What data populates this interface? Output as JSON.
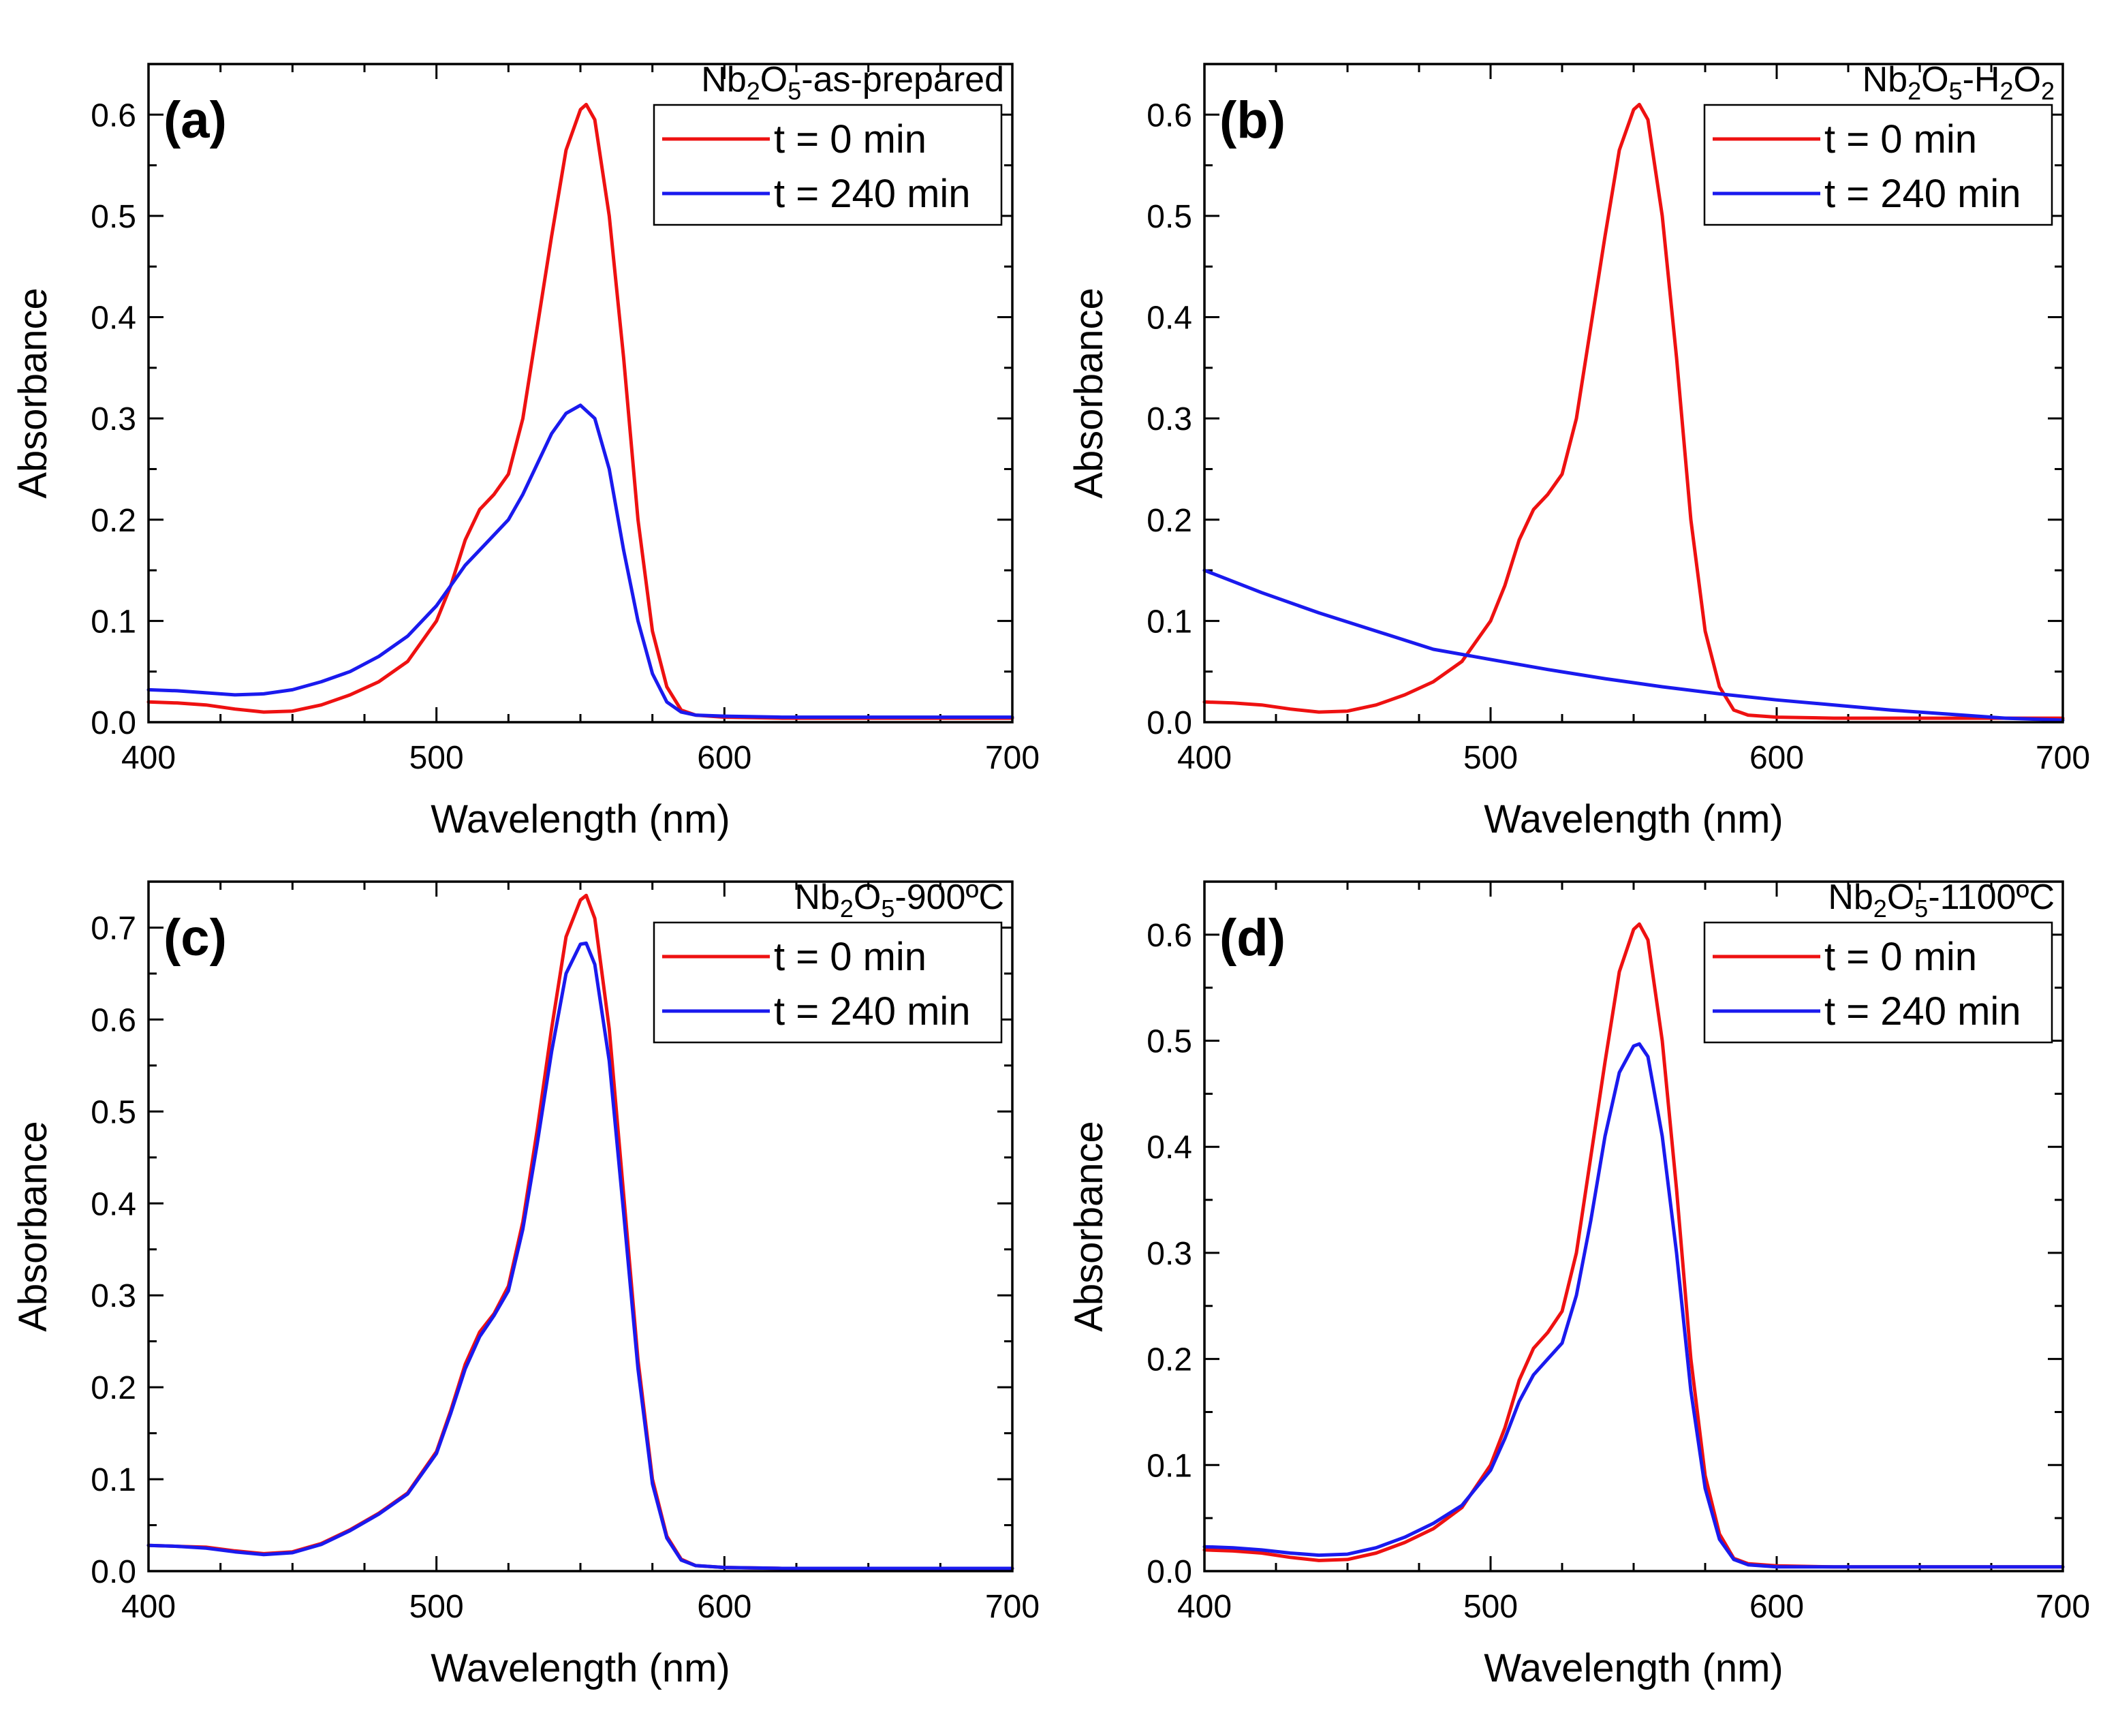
{
  "colors": {
    "t0": "#ee1111",
    "t240": "#1a1aee",
    "axis": "#000000"
  },
  "chart_data": [
    {
      "type": "line",
      "panel_label": "(a)",
      "sample_label": {
        "prefix": "Nb",
        "sub1": "2",
        "mid": "O",
        "sub2": "5",
        "suffix": "-as-prepared"
      },
      "xlabel": "Wavelength (nm)",
      "ylabel": "Absorbance",
      "xlim": [
        400,
        700
      ],
      "ylim": [
        0,
        0.65
      ],
      "xticks": [
        400,
        500,
        600,
        700
      ],
      "xtick_labels": [
        "400",
        "500",
        "600",
        "700"
      ],
      "yticks": [
        0,
        0.1,
        0.2,
        0.3,
        0.4,
        0.5,
        0.6
      ],
      "ytick_labels": [
        "0.0",
        "0.1",
        "0.2",
        "0.3",
        "0.4",
        "0.5",
        "0.6"
      ],
      "legend": {
        "position": "top-right",
        "entries": [
          "t = 0 min",
          "t = 240 min"
        ]
      },
      "series": [
        {
          "name": "t = 0 min",
          "color": "#ee1111",
          "x": [
            400,
            410,
            420,
            430,
            440,
            450,
            460,
            470,
            480,
            490,
            500,
            505,
            510,
            515,
            520,
            525,
            530,
            535,
            540,
            545,
            550,
            552,
            555,
            560,
            565,
            570,
            575,
            580,
            585,
            590,
            600,
            620,
            650,
            700
          ],
          "y": [
            0.02,
            0.019,
            0.017,
            0.013,
            0.01,
            0.011,
            0.017,
            0.027,
            0.04,
            0.06,
            0.1,
            0.135,
            0.18,
            0.21,
            0.225,
            0.245,
            0.3,
            0.39,
            0.48,
            0.565,
            0.605,
            0.61,
            0.595,
            0.5,
            0.36,
            0.2,
            0.09,
            0.035,
            0.012,
            0.007,
            0.005,
            0.004,
            0.004,
            0.004
          ]
        },
        {
          "name": "t = 240 min",
          "color": "#1a1aee",
          "x": [
            400,
            410,
            420,
            430,
            440,
            450,
            460,
            470,
            480,
            490,
            500,
            505,
            510,
            515,
            520,
            525,
            530,
            535,
            540,
            545,
            550,
            555,
            560,
            565,
            570,
            575,
            580,
            585,
            590,
            600,
            620,
            650,
            700
          ],
          "y": [
            0.032,
            0.031,
            0.029,
            0.027,
            0.028,
            0.032,
            0.04,
            0.05,
            0.065,
            0.085,
            0.115,
            0.135,
            0.155,
            0.17,
            0.185,
            0.2,
            0.225,
            0.255,
            0.285,
            0.305,
            0.313,
            0.3,
            0.25,
            0.17,
            0.1,
            0.048,
            0.02,
            0.01,
            0.007,
            0.006,
            0.005,
            0.005,
            0.005
          ]
        }
      ]
    },
    {
      "type": "line",
      "panel_label": "(b)",
      "sample_label": {
        "prefix": "Nb",
        "sub1": "2",
        "mid": "O",
        "sub2": "5",
        "suffix": "-H",
        "sub3": "2",
        "mid2": "O",
        "sub4": "2"
      },
      "xlabel": "Wavelength (nm)",
      "ylabel": "Absorbance",
      "xlim": [
        400,
        700
      ],
      "ylim": [
        0,
        0.65
      ],
      "xticks": [
        400,
        500,
        600,
        700
      ],
      "xtick_labels": [
        "400",
        "500",
        "600",
        "700"
      ],
      "yticks": [
        0,
        0.1,
        0.2,
        0.3,
        0.4,
        0.5,
        0.6
      ],
      "ytick_labels": [
        "0.0",
        "0.1",
        "0.2",
        "0.3",
        "0.4",
        "0.5",
        "0.6"
      ],
      "legend": {
        "position": "top-right",
        "entries": [
          "t = 0 min",
          "t = 240 min"
        ]
      },
      "series": [
        {
          "name": "t = 0 min",
          "color": "#ee1111",
          "x": [
            400,
            410,
            420,
            430,
            440,
            450,
            460,
            470,
            480,
            490,
            500,
            505,
            510,
            515,
            520,
            525,
            530,
            535,
            540,
            545,
            550,
            552,
            555,
            560,
            565,
            570,
            575,
            580,
            585,
            590,
            600,
            620,
            650,
            700
          ],
          "y": [
            0.02,
            0.019,
            0.017,
            0.013,
            0.01,
            0.011,
            0.017,
            0.027,
            0.04,
            0.06,
            0.1,
            0.135,
            0.18,
            0.21,
            0.225,
            0.245,
            0.3,
            0.39,
            0.48,
            0.565,
            0.605,
            0.61,
            0.595,
            0.5,
            0.36,
            0.2,
            0.09,
            0.035,
            0.012,
            0.007,
            0.005,
            0.004,
            0.004,
            0.004
          ]
        },
        {
          "name": "t = 240 min",
          "color": "#1a1aee",
          "x": [
            400,
            420,
            440,
            460,
            480,
            500,
            520,
            540,
            560,
            580,
            600,
            620,
            640,
            660,
            680,
            700
          ],
          "y": [
            0.15,
            0.128,
            0.108,
            0.09,
            0.072,
            0.062,
            0.052,
            0.043,
            0.035,
            0.028,
            0.022,
            0.017,
            0.012,
            0.008,
            0.004,
            0.002
          ]
        }
      ]
    },
    {
      "type": "line",
      "panel_label": "(c)",
      "sample_label": {
        "prefix": "Nb",
        "sub1": "2",
        "mid": "O",
        "sub2": "5",
        "suffix": "-900ºC"
      },
      "xlabel": "Wavelength (nm)",
      "ylabel": "Absorbance",
      "xlim": [
        400,
        700
      ],
      "ylim": [
        0,
        0.75
      ],
      "xticks": [
        400,
        500,
        600,
        700
      ],
      "xtick_labels": [
        "400",
        "500",
        "600",
        "700"
      ],
      "yticks": [
        0,
        0.1,
        0.2,
        0.3,
        0.4,
        0.5,
        0.6,
        0.7
      ],
      "ytick_labels": [
        "0.0",
        "0.1",
        "0.2",
        "0.3",
        "0.4",
        "0.5",
        "0.6",
        "0.7"
      ],
      "legend": {
        "position": "top-right",
        "entries": [
          "t = 0 min",
          "t = 240 min"
        ]
      },
      "series": [
        {
          "name": "t = 0 min",
          "color": "#ee1111",
          "x": [
            400,
            410,
            420,
            430,
            440,
            450,
            460,
            470,
            480,
            490,
            500,
            505,
            510,
            515,
            520,
            525,
            530,
            535,
            540,
            545,
            550,
            552,
            555,
            560,
            565,
            570,
            575,
            580,
            585,
            590,
            600,
            620,
            650,
            700
          ],
          "y": [
            0.028,
            0.027,
            0.026,
            0.022,
            0.019,
            0.021,
            0.03,
            0.045,
            0.063,
            0.085,
            0.13,
            0.175,
            0.225,
            0.26,
            0.28,
            0.31,
            0.38,
            0.48,
            0.59,
            0.69,
            0.73,
            0.735,
            0.71,
            0.59,
            0.41,
            0.23,
            0.1,
            0.038,
            0.013,
            0.006,
            0.004,
            0.003,
            0.003,
            0.003
          ]
        },
        {
          "name": "t = 240 min",
          "color": "#1a1aee",
          "x": [
            400,
            410,
            420,
            430,
            440,
            450,
            460,
            470,
            480,
            490,
            500,
            505,
            510,
            515,
            520,
            525,
            530,
            535,
            540,
            545,
            550,
            552,
            555,
            560,
            565,
            570,
            575,
            580,
            585,
            590,
            600,
            620,
            650,
            700
          ],
          "y": [
            0.028,
            0.027,
            0.025,
            0.021,
            0.018,
            0.02,
            0.029,
            0.044,
            0.062,
            0.084,
            0.128,
            0.172,
            0.22,
            0.255,
            0.278,
            0.305,
            0.372,
            0.465,
            0.565,
            0.65,
            0.682,
            0.683,
            0.66,
            0.555,
            0.39,
            0.22,
            0.095,
            0.036,
            0.012,
            0.006,
            0.004,
            0.003,
            0.003,
            0.003
          ]
        }
      ]
    },
    {
      "type": "line",
      "panel_label": "(d)",
      "sample_label": {
        "prefix": "Nb",
        "sub1": "2",
        "mid": "O",
        "sub2": "5",
        "suffix": "-1100ºC"
      },
      "xlabel": "Wavelength (nm)",
      "ylabel": "Absorbance",
      "xlim": [
        400,
        700
      ],
      "ylim": [
        0,
        0.65
      ],
      "xticks": [
        400,
        500,
        600,
        700
      ],
      "xtick_labels": [
        "400",
        "500",
        "600",
        "700"
      ],
      "yticks": [
        0,
        0.1,
        0.2,
        0.3,
        0.4,
        0.5,
        0.6
      ],
      "ytick_labels": [
        "0.0",
        "0.1",
        "0.2",
        "0.3",
        "0.4",
        "0.5",
        "0.6"
      ],
      "legend": {
        "position": "top-right",
        "entries": [
          "t = 0 min",
          "t = 240 min"
        ]
      },
      "series": [
        {
          "name": "t = 0 min",
          "color": "#ee1111",
          "x": [
            400,
            410,
            420,
            430,
            440,
            450,
            460,
            470,
            480,
            490,
            500,
            505,
            510,
            515,
            520,
            525,
            530,
            535,
            540,
            545,
            550,
            552,
            555,
            560,
            565,
            570,
            575,
            580,
            585,
            590,
            600,
            620,
            650,
            700
          ],
          "y": [
            0.02,
            0.019,
            0.017,
            0.013,
            0.01,
            0.011,
            0.017,
            0.027,
            0.04,
            0.06,
            0.1,
            0.135,
            0.18,
            0.21,
            0.225,
            0.245,
            0.3,
            0.39,
            0.48,
            0.565,
            0.605,
            0.61,
            0.595,
            0.5,
            0.36,
            0.2,
            0.09,
            0.035,
            0.012,
            0.007,
            0.005,
            0.004,
            0.004,
            0.004
          ]
        },
        {
          "name": "t = 240 min",
          "color": "#1a1aee",
          "x": [
            400,
            410,
            420,
            430,
            440,
            450,
            460,
            470,
            480,
            490,
            500,
            505,
            510,
            515,
            520,
            525,
            530,
            535,
            540,
            545,
            550,
            552,
            555,
            560,
            565,
            570,
            575,
            580,
            585,
            590,
            600,
            620,
            650,
            700
          ],
          "y": [
            0.023,
            0.022,
            0.02,
            0.017,
            0.015,
            0.016,
            0.022,
            0.032,
            0.045,
            0.062,
            0.095,
            0.125,
            0.16,
            0.185,
            0.2,
            0.215,
            0.26,
            0.33,
            0.41,
            0.47,
            0.495,
            0.497,
            0.485,
            0.41,
            0.3,
            0.17,
            0.078,
            0.03,
            0.011,
            0.006,
            0.004,
            0.004,
            0.004,
            0.004
          ]
        }
      ]
    }
  ]
}
